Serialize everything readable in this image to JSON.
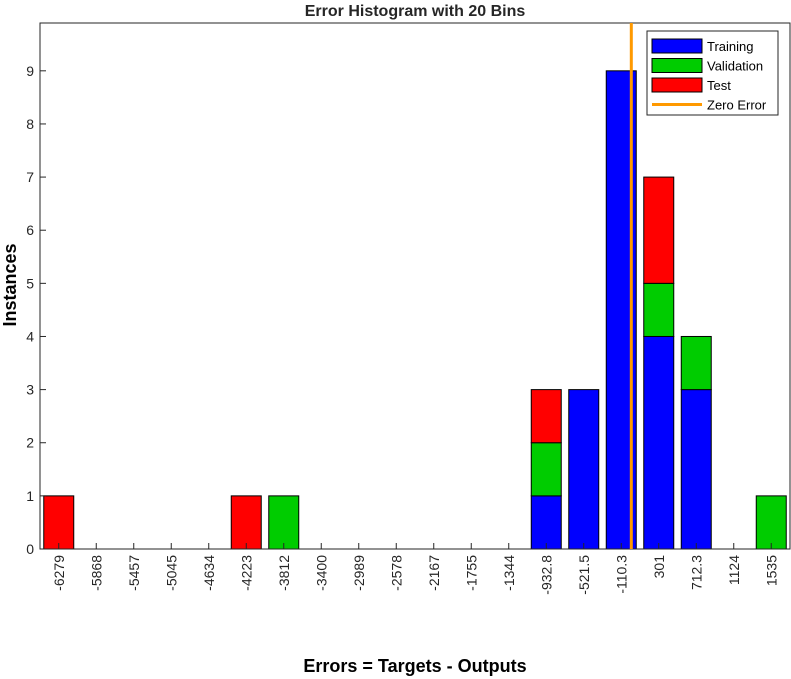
{
  "chart_data": {
    "type": "bar",
    "stacked": true,
    "title": "Error Histogram with 20 Bins",
    "xlabel": "Errors = Targets - Outputs",
    "ylabel": "Instances",
    "ylim": [
      0,
      9.9
    ],
    "yticks": [
      0,
      1,
      2,
      3,
      4,
      5,
      6,
      7,
      8,
      9
    ],
    "categories": [
      "-6279",
      "-5868",
      "-5457",
      "-5045",
      "-4634",
      "-4223",
      "-3812",
      "-3400",
      "-2989",
      "-2578",
      "-2167",
      "-1755",
      "-1344",
      "-932.8",
      "-521.5",
      "-110.3",
      "301",
      "712.3",
      "1124",
      "1535"
    ],
    "series": [
      {
        "name": "Training",
        "color": "#0000ff",
        "values": [
          0,
          0,
          0,
          0,
          0,
          0,
          0,
          0,
          0,
          0,
          0,
          0,
          0,
          1,
          3,
          9,
          4,
          3,
          0,
          0
        ]
      },
      {
        "name": "Validation",
        "color": "#00cc00",
        "values": [
          0,
          0,
          0,
          0,
          0,
          0,
          1,
          0,
          0,
          0,
          0,
          0,
          0,
          1,
          0,
          0,
          1,
          1,
          0,
          1
        ]
      },
      {
        "name": "Test",
        "color": "#ff0000",
        "values": [
          1,
          0,
          0,
          0,
          0,
          1,
          0,
          0,
          0,
          0,
          0,
          0,
          0,
          1,
          0,
          0,
          2,
          0,
          0,
          0
        ]
      }
    ],
    "zero_error": {
      "name": "Zero Error",
      "color": "#ff9900",
      "x": 0
    },
    "legend_position": "top-right",
    "grid": false
  }
}
